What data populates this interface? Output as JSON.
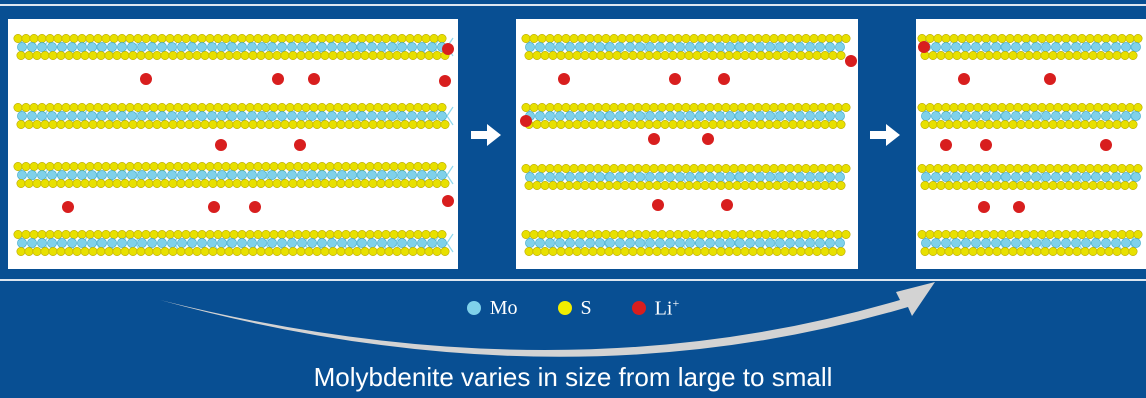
{
  "legend": {
    "items": [
      {
        "label": "Mo",
        "color": "#7FD1EA"
      },
      {
        "label": "S",
        "color": "#F2EE00"
      },
      {
        "label": "Li",
        "sup": "+",
        "color": "#D81E1E"
      }
    ]
  },
  "caption": "Molybdenite varies in size from large to small",
  "colors": {
    "background": "#084F93",
    "mo_atom": "#7FD1EA",
    "s_atom": "#E8E000",
    "li_ion": "#D81E1E",
    "arrow": "#FFFFFF"
  },
  "panels": [
    {
      "name": "large",
      "layers": 4
    },
    {
      "name": "medium",
      "layers": 4
    },
    {
      "name": "small",
      "layers": 4
    }
  ]
}
